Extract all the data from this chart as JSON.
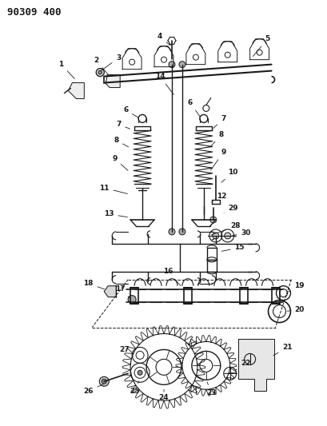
{
  "title": "90309 400",
  "bg_color": "#ffffff",
  "line_color": "#1a1a1a",
  "title_fontsize": 9,
  "label_fontsize": 6.5,
  "fig_width": 4.09,
  "fig_height": 5.33,
  "dpi": 100
}
